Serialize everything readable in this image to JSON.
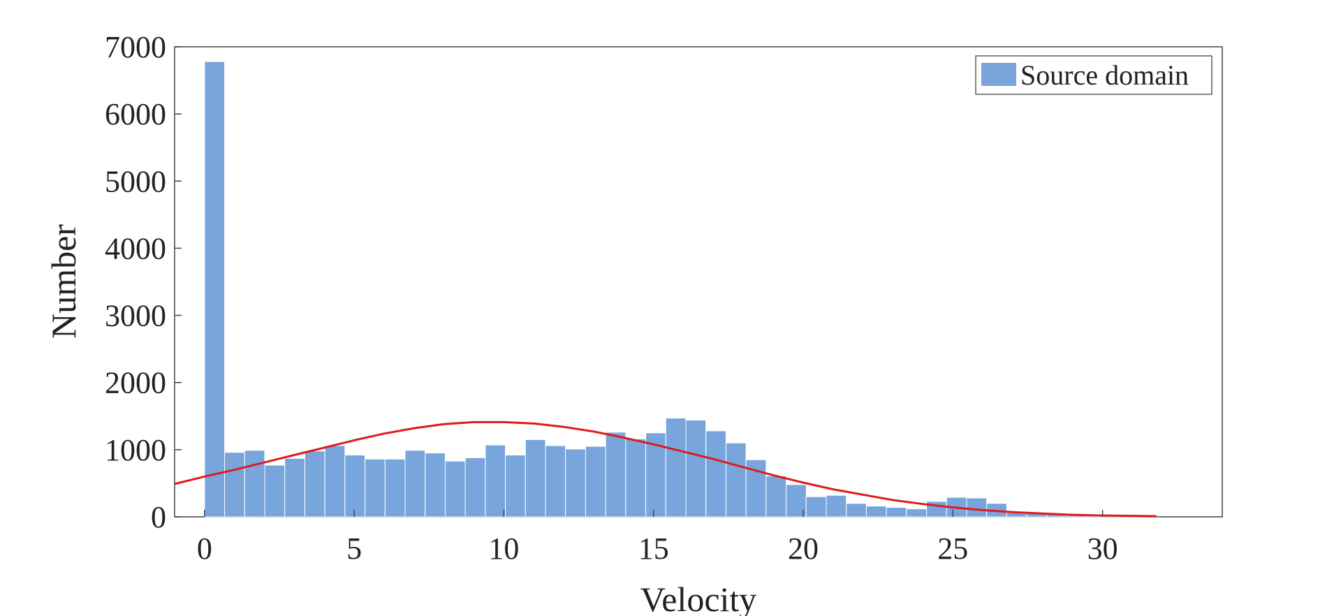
{
  "chart_data": {
    "type": "bar",
    "subtype": "histogram",
    "xlabel": "Velocity",
    "ylabel": "Number",
    "xlim": [
      -1,
      34
    ],
    "ylim": [
      0,
      7000
    ],
    "xticks": [
      0,
      5,
      10,
      15,
      20,
      25,
      30
    ],
    "yticks": [
      0,
      1000,
      2000,
      3000,
      4000,
      5000,
      6000,
      7000
    ],
    "grid": false,
    "legend": {
      "position": "top-right",
      "entries": [
        "Source domain"
      ]
    },
    "bin_width": 0.67,
    "bin_start": 0,
    "series": [
      {
        "name": "Source domain",
        "kind": "histogram",
        "color": "#77a5dc",
        "values": [
          6780,
          960,
          990,
          770,
          870,
          980,
          1060,
          920,
          860,
          860,
          990,
          950,
          830,
          880,
          1070,
          920,
          1150,
          1060,
          1010,
          1050,
          1260,
          1160,
          1250,
          1470,
          1440,
          1280,
          1100,
          850,
          610,
          480,
          300,
          320,
          200,
          160,
          140,
          120,
          230,
          290,
          280,
          200,
          70,
          60,
          50,
          40,
          30,
          20,
          10
        ]
      },
      {
        "name": "",
        "kind": "fitted-curve",
        "color": "#e01a1a",
        "x": [
          -1,
          0,
          1,
          2,
          3,
          4,
          5,
          6,
          7,
          8,
          9,
          10,
          11,
          12,
          13,
          14,
          15,
          16,
          17,
          18,
          19,
          20,
          21,
          22,
          23,
          24,
          25,
          26,
          27,
          28,
          29,
          30,
          31,
          31.8
        ],
        "y": [
          490,
          600,
          700,
          810,
          920,
          1030,
          1140,
          1240,
          1320,
          1380,
          1410,
          1410,
          1390,
          1340,
          1270,
          1180,
          1080,
          970,
          860,
          740,
          620,
          510,
          410,
          330,
          250,
          190,
          140,
          100,
          70,
          50,
          30,
          20,
          15,
          10
        ]
      }
    ]
  }
}
